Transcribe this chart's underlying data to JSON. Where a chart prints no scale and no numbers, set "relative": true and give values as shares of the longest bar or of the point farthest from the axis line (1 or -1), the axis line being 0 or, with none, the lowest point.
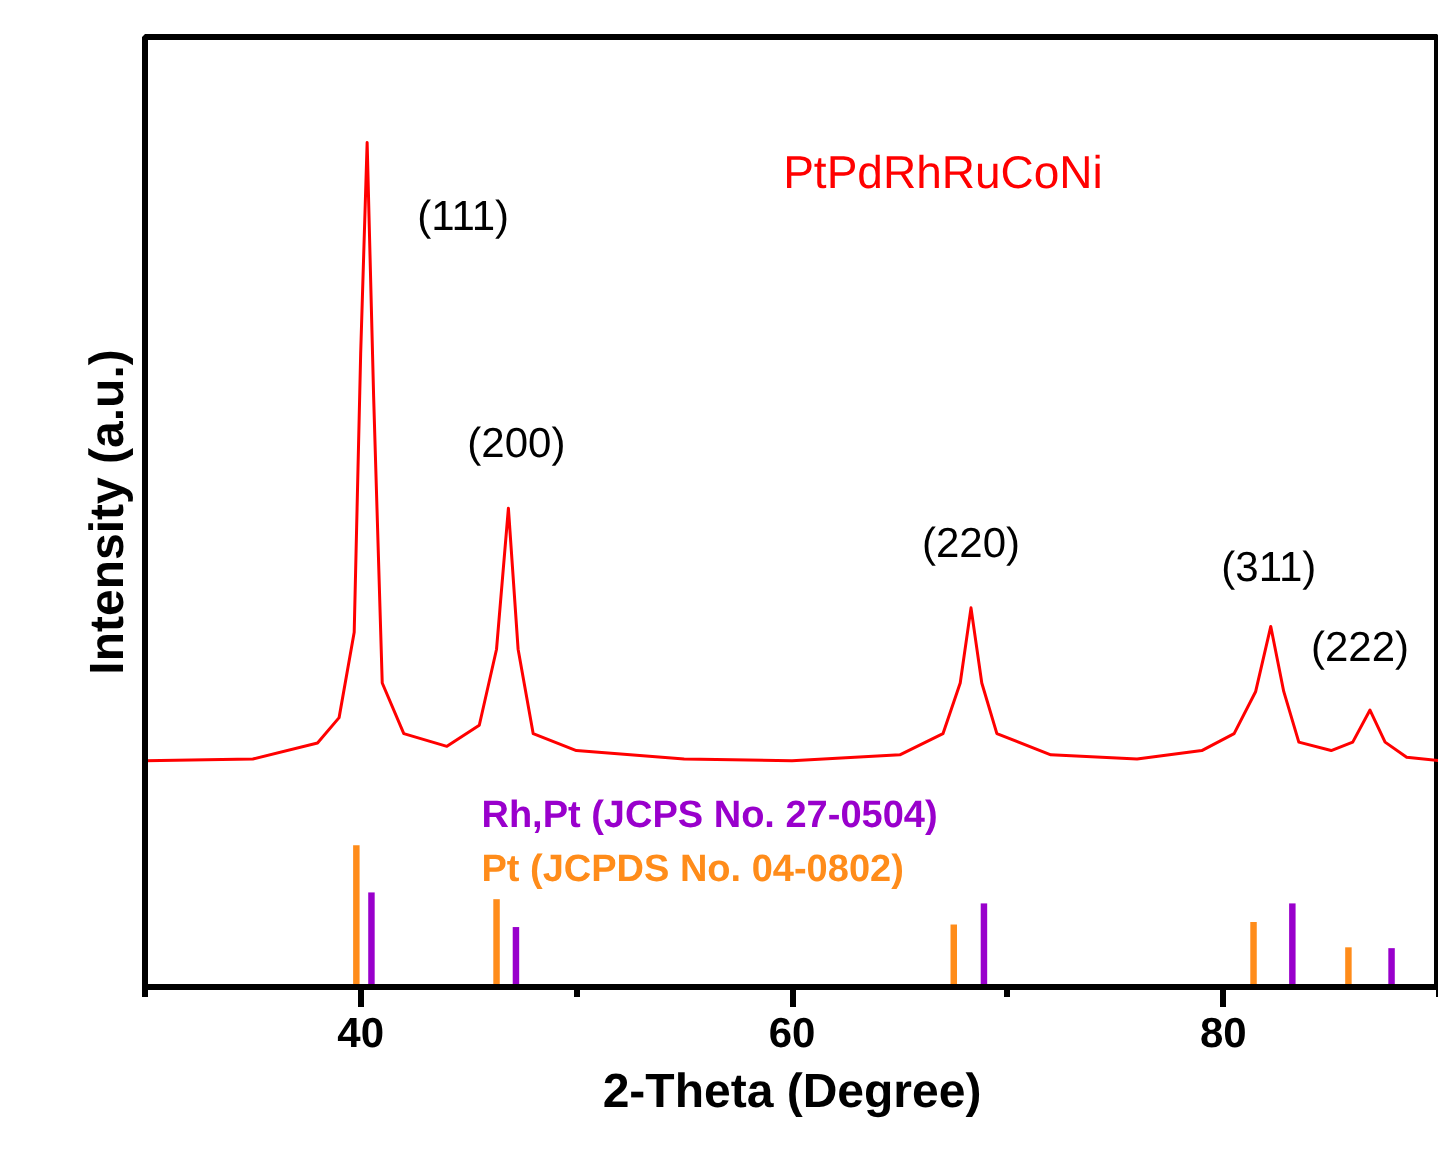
{
  "chart_data": {
    "type": "line",
    "relative": true,
    "xlabel": "2-Theta (Degree)",
    "ylabel": "Intensity (a.u.)",
    "xlim": [
      30,
      90
    ],
    "xticks": [
      {
        "value": 30,
        "label": null
      },
      40,
      {
        "value": 50,
        "label": null
      },
      60,
      {
        "value": 70,
        "label": null
      },
      80,
      {
        "value": 90,
        "label": null
      }
    ],
    "grid": false,
    "legend": false,
    "tick_labels": "x",
    "series": [
      {
        "name": "PtPdRhRuCoNi",
        "color": "#ff0000",
        "x": [
          30,
          35,
          38,
          39,
          39.7,
          40,
          40.3,
          40.6,
          41,
          42,
          44,
          45.5,
          46.3,
          46.85,
          47.3,
          48,
          50,
          55,
          60,
          65,
          67,
          67.8,
          68.3,
          68.8,
          69.5,
          72,
          76,
          79,
          80.5,
          81.5,
          82.2,
          82.8,
          83.5,
          85,
          86,
          86.8,
          87.5,
          88.5,
          90
        ],
        "values": [
          0.268,
          0.27,
          0.289,
          0.319,
          0.42,
          0.75,
          1.0,
          0.7,
          0.36,
          0.3,
          0.285,
          0.31,
          0.4,
          0.567,
          0.4,
          0.3,
          0.28,
          0.27,
          0.268,
          0.275,
          0.3,
          0.36,
          0.449,
          0.36,
          0.3,
          0.275,
          0.27,
          0.28,
          0.3,
          0.35,
          0.427,
          0.35,
          0.29,
          0.28,
          0.29,
          0.328,
          0.29,
          0.272,
          0.268
        ]
      },
      {
        "name": "Rh,Pt (JCPS No. 27-0504)",
        "type": "bar",
        "color": "#9900cc",
        "x": [
          40.5,
          47.2,
          68.9,
          83.2,
          87.8
        ],
        "values": [
          0.112,
          0.071,
          0.099,
          0.099,
          0.046
        ]
      },
      {
        "name": "Pt (JCPDS No. 04-0802)",
        "type": "bar",
        "color": "#ff8c1a",
        "x": [
          39.8,
          46.3,
          67.5,
          81.4,
          85.8
        ],
        "values": [
          0.168,
          0.104,
          0.074,
          0.077,
          0.047
        ]
      }
    ],
    "annotations": [
      {
        "text": "(111)",
        "x": 40.3,
        "y": 1.0
      },
      {
        "text": "(200)",
        "x": 46.85,
        "y": 0.567
      },
      {
        "text": "(220)",
        "x": 68.3,
        "y": 0.449
      },
      {
        "text": "(311)",
        "x": 82.2,
        "y": 0.427
      },
      {
        "text": "(222)",
        "x": 86.8,
        "y": 0.328
      }
    ]
  }
}
